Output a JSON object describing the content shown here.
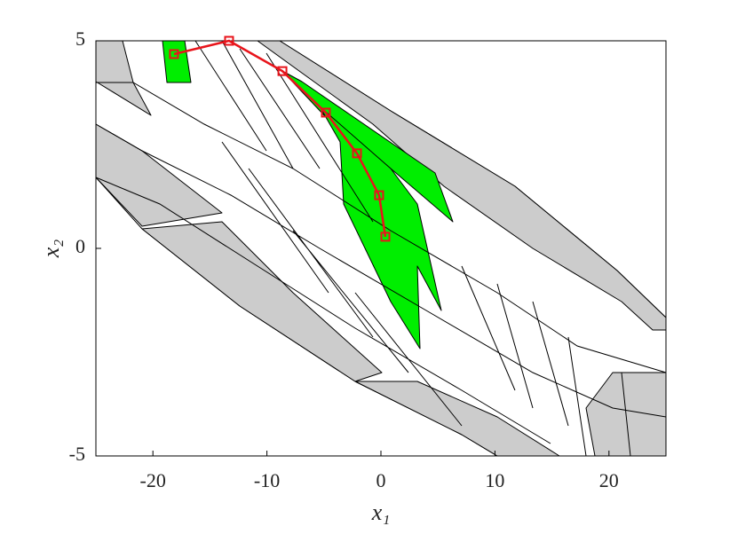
{
  "chart_data": {
    "type": "line",
    "xlabel": "x₁",
    "ylabel": "x₂",
    "xlim": [
      -25,
      25
    ],
    "ylim": [
      -5,
      5
    ],
    "xticks": [
      -20,
      -10,
      0,
      10,
      20
    ],
    "yticks": [
      -5,
      0,
      5
    ],
    "series": [
      {
        "color": "#e8141b",
        "x": [
          -18.15,
          -13.32,
          -8.64,
          -4.83,
          -2.1,
          -0.16,
          0.39
        ],
        "values": [
          4.68,
          5,
          4.27,
          3.27,
          2.29,
          1.28,
          0.28
        ]
      }
    ]
  }
}
